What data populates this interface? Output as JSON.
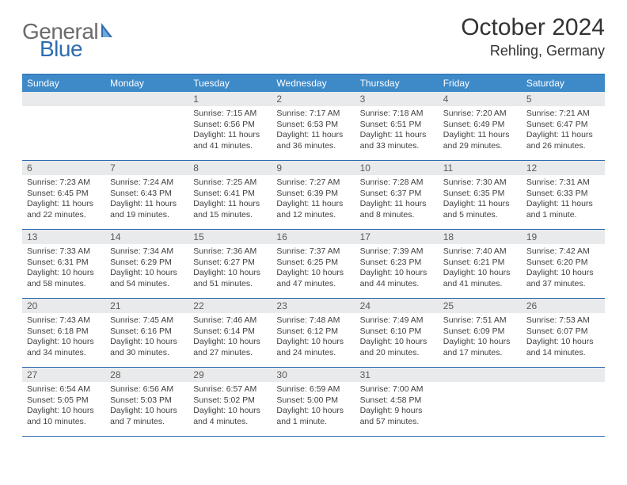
{
  "logo": {
    "textGray": "General",
    "textBlue": "Blue"
  },
  "title": "October 2024",
  "location": "Rehling, Germany",
  "colors": {
    "headerBar": "#3e8ac9",
    "borderBlue": "#2f6db0",
    "dayNumBg": "#e9eaeb",
    "bodyText": "#404040"
  },
  "weekdays": [
    "Sunday",
    "Monday",
    "Tuesday",
    "Wednesday",
    "Thursday",
    "Friday",
    "Saturday"
  ],
  "weeks": [
    [
      null,
      null,
      {
        "n": "1",
        "sr": "Sunrise: 7:15 AM",
        "ss": "Sunset: 6:56 PM",
        "dl": "Daylight: 11 hours and 41 minutes."
      },
      {
        "n": "2",
        "sr": "Sunrise: 7:17 AM",
        "ss": "Sunset: 6:53 PM",
        "dl": "Daylight: 11 hours and 36 minutes."
      },
      {
        "n": "3",
        "sr": "Sunrise: 7:18 AM",
        "ss": "Sunset: 6:51 PM",
        "dl": "Daylight: 11 hours and 33 minutes."
      },
      {
        "n": "4",
        "sr": "Sunrise: 7:20 AM",
        "ss": "Sunset: 6:49 PM",
        "dl": "Daylight: 11 hours and 29 minutes."
      },
      {
        "n": "5",
        "sr": "Sunrise: 7:21 AM",
        "ss": "Sunset: 6:47 PM",
        "dl": "Daylight: 11 hours and 26 minutes."
      }
    ],
    [
      {
        "n": "6",
        "sr": "Sunrise: 7:23 AM",
        "ss": "Sunset: 6:45 PM",
        "dl": "Daylight: 11 hours and 22 minutes."
      },
      {
        "n": "7",
        "sr": "Sunrise: 7:24 AM",
        "ss": "Sunset: 6:43 PM",
        "dl": "Daylight: 11 hours and 19 minutes."
      },
      {
        "n": "8",
        "sr": "Sunrise: 7:25 AM",
        "ss": "Sunset: 6:41 PM",
        "dl": "Daylight: 11 hours and 15 minutes."
      },
      {
        "n": "9",
        "sr": "Sunrise: 7:27 AM",
        "ss": "Sunset: 6:39 PM",
        "dl": "Daylight: 11 hours and 12 minutes."
      },
      {
        "n": "10",
        "sr": "Sunrise: 7:28 AM",
        "ss": "Sunset: 6:37 PM",
        "dl": "Daylight: 11 hours and 8 minutes."
      },
      {
        "n": "11",
        "sr": "Sunrise: 7:30 AM",
        "ss": "Sunset: 6:35 PM",
        "dl": "Daylight: 11 hours and 5 minutes."
      },
      {
        "n": "12",
        "sr": "Sunrise: 7:31 AM",
        "ss": "Sunset: 6:33 PM",
        "dl": "Daylight: 11 hours and 1 minute."
      }
    ],
    [
      {
        "n": "13",
        "sr": "Sunrise: 7:33 AM",
        "ss": "Sunset: 6:31 PM",
        "dl": "Daylight: 10 hours and 58 minutes."
      },
      {
        "n": "14",
        "sr": "Sunrise: 7:34 AM",
        "ss": "Sunset: 6:29 PM",
        "dl": "Daylight: 10 hours and 54 minutes."
      },
      {
        "n": "15",
        "sr": "Sunrise: 7:36 AM",
        "ss": "Sunset: 6:27 PM",
        "dl": "Daylight: 10 hours and 51 minutes."
      },
      {
        "n": "16",
        "sr": "Sunrise: 7:37 AM",
        "ss": "Sunset: 6:25 PM",
        "dl": "Daylight: 10 hours and 47 minutes."
      },
      {
        "n": "17",
        "sr": "Sunrise: 7:39 AM",
        "ss": "Sunset: 6:23 PM",
        "dl": "Daylight: 10 hours and 44 minutes."
      },
      {
        "n": "18",
        "sr": "Sunrise: 7:40 AM",
        "ss": "Sunset: 6:21 PM",
        "dl": "Daylight: 10 hours and 41 minutes."
      },
      {
        "n": "19",
        "sr": "Sunrise: 7:42 AM",
        "ss": "Sunset: 6:20 PM",
        "dl": "Daylight: 10 hours and 37 minutes."
      }
    ],
    [
      {
        "n": "20",
        "sr": "Sunrise: 7:43 AM",
        "ss": "Sunset: 6:18 PM",
        "dl": "Daylight: 10 hours and 34 minutes."
      },
      {
        "n": "21",
        "sr": "Sunrise: 7:45 AM",
        "ss": "Sunset: 6:16 PM",
        "dl": "Daylight: 10 hours and 30 minutes."
      },
      {
        "n": "22",
        "sr": "Sunrise: 7:46 AM",
        "ss": "Sunset: 6:14 PM",
        "dl": "Daylight: 10 hours and 27 minutes."
      },
      {
        "n": "23",
        "sr": "Sunrise: 7:48 AM",
        "ss": "Sunset: 6:12 PM",
        "dl": "Daylight: 10 hours and 24 minutes."
      },
      {
        "n": "24",
        "sr": "Sunrise: 7:49 AM",
        "ss": "Sunset: 6:10 PM",
        "dl": "Daylight: 10 hours and 20 minutes."
      },
      {
        "n": "25",
        "sr": "Sunrise: 7:51 AM",
        "ss": "Sunset: 6:09 PM",
        "dl": "Daylight: 10 hours and 17 minutes."
      },
      {
        "n": "26",
        "sr": "Sunrise: 7:53 AM",
        "ss": "Sunset: 6:07 PM",
        "dl": "Daylight: 10 hours and 14 minutes."
      }
    ],
    [
      {
        "n": "27",
        "sr": "Sunrise: 6:54 AM",
        "ss": "Sunset: 5:05 PM",
        "dl": "Daylight: 10 hours and 10 minutes."
      },
      {
        "n": "28",
        "sr": "Sunrise: 6:56 AM",
        "ss": "Sunset: 5:03 PM",
        "dl": "Daylight: 10 hours and 7 minutes."
      },
      {
        "n": "29",
        "sr": "Sunrise: 6:57 AM",
        "ss": "Sunset: 5:02 PM",
        "dl": "Daylight: 10 hours and 4 minutes."
      },
      {
        "n": "30",
        "sr": "Sunrise: 6:59 AM",
        "ss": "Sunset: 5:00 PM",
        "dl": "Daylight: 10 hours and 1 minute."
      },
      {
        "n": "31",
        "sr": "Sunrise: 7:00 AM",
        "ss": "Sunset: 4:58 PM",
        "dl": "Daylight: 9 hours and 57 minutes."
      },
      null,
      null
    ]
  ]
}
